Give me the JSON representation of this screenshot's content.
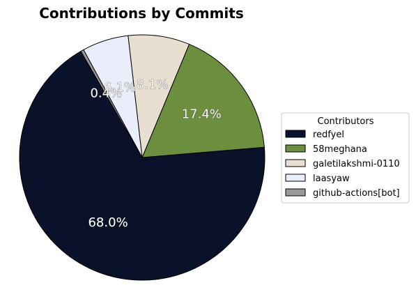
{
  "chart_data": {
    "type": "pie",
    "title": "Contributions by Commits",
    "legend_title": "Contributors",
    "legend_position": "right",
    "categories": [
      "redfyel",
      "58meghana",
      "galetilakshmi-0110",
      "laasyaw",
      "github-actions[bot]"
    ],
    "values": [
      68.0,
      17.4,
      8.1,
      6.1,
      0.4
    ],
    "labels": [
      "68.0%",
      "17.4%",
      "8.1%",
      "6.1%",
      "0.4%"
    ],
    "colors": [
      "#0a122a",
      "#6b8f3e",
      "#e8dfd0",
      "#eaeefa",
      "#999999"
    ],
    "start_angle_deg": 120,
    "direction": "counterclockwise"
  }
}
